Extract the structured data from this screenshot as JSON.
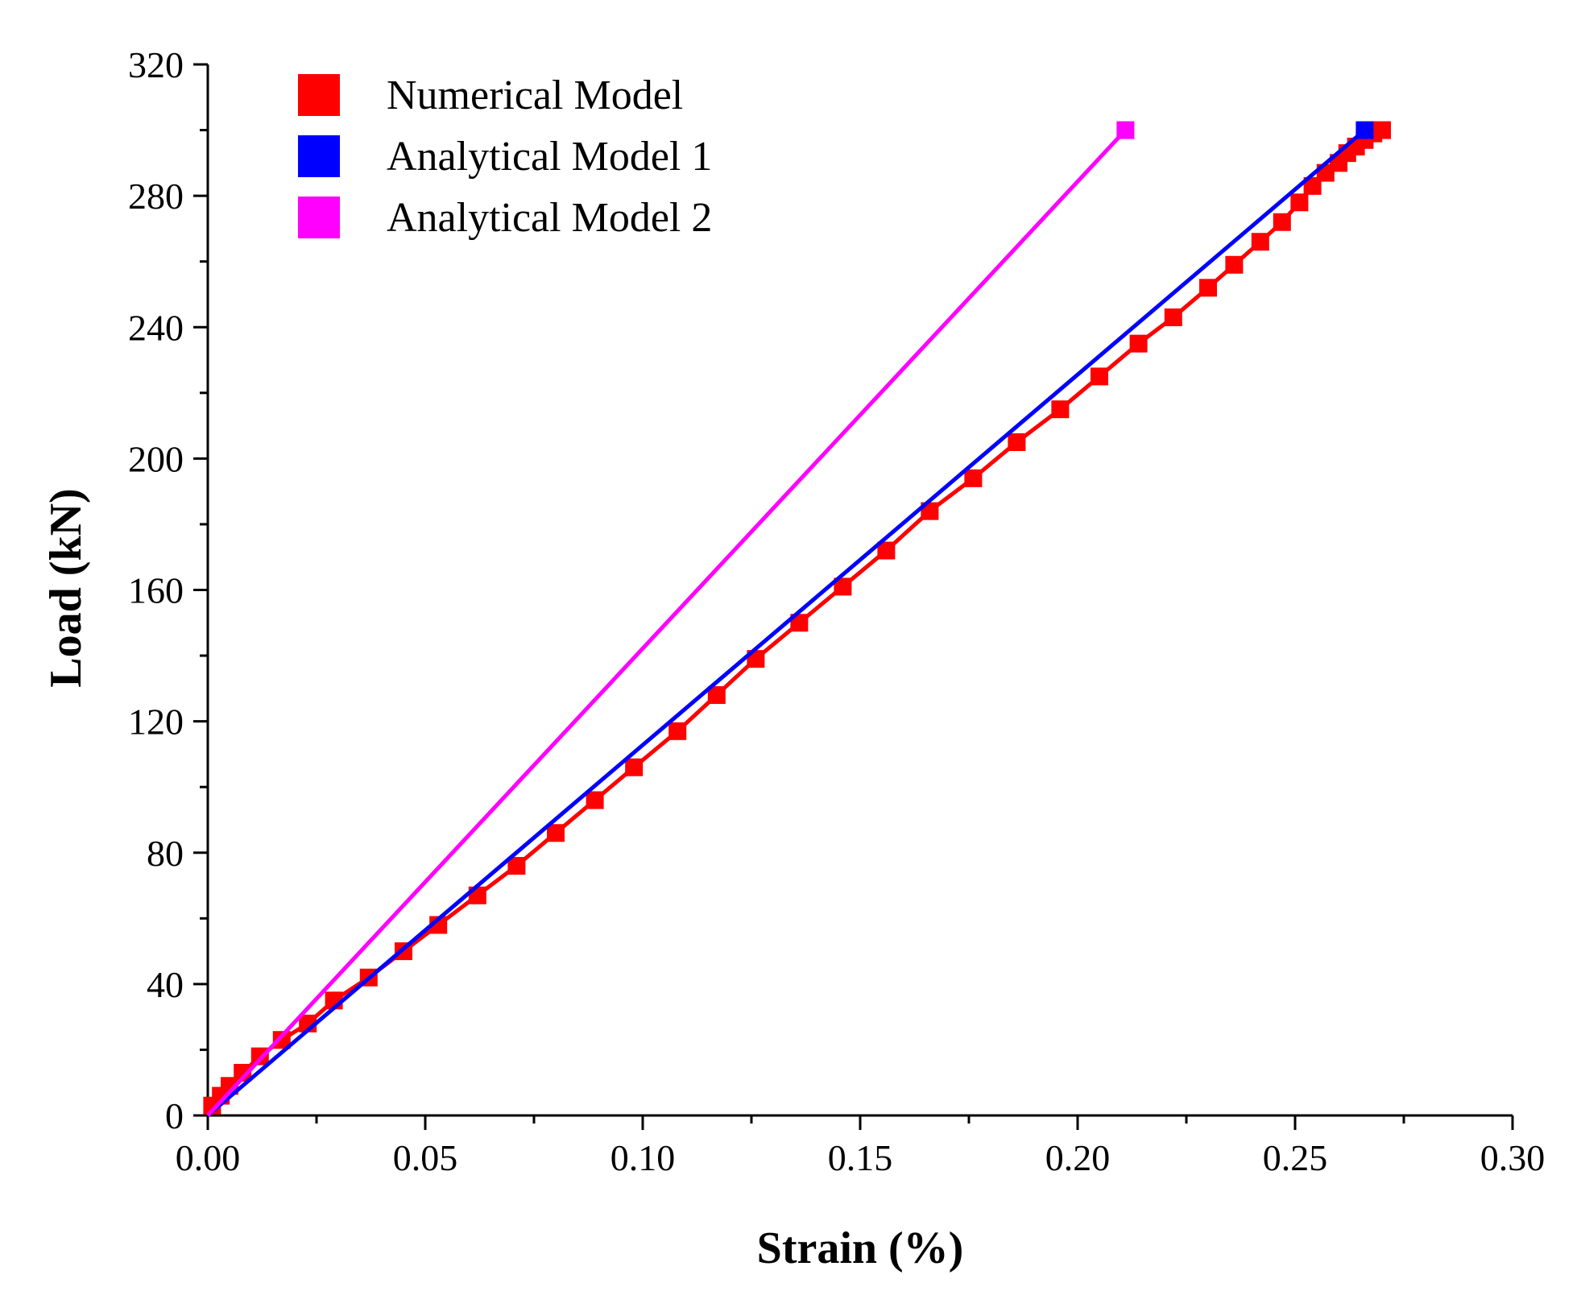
{
  "chart_data": {
    "type": "line",
    "title": "",
    "xlabel": "Strain (%)",
    "ylabel": "Load (kN)",
    "xlim": [
      0.0,
      0.3
    ],
    "ylim": [
      0,
      320
    ],
    "xticks": [
      0.0,
      0.05,
      0.1,
      0.15,
      0.2,
      0.25,
      0.3
    ],
    "xtick_labels": [
      "0.00",
      "0.05",
      "0.10",
      "0.15",
      "0.20",
      "0.25",
      "0.30"
    ],
    "yticks": [
      0,
      40,
      80,
      120,
      160,
      200,
      240,
      280,
      320
    ],
    "ytick_labels": [
      "0",
      "40",
      "80",
      "120",
      "160",
      "200",
      "240",
      "280",
      "320"
    ],
    "grid": false,
    "legend_position": "top-left",
    "series": [
      {
        "name": "Numerical Model",
        "color": "#ff0000",
        "marker": "square",
        "x": [
          0.001,
          0.003,
          0.005,
          0.008,
          0.012,
          0.017,
          0.023,
          0.029,
          0.037,
          0.045,
          0.053,
          0.062,
          0.071,
          0.08,
          0.089,
          0.098,
          0.108,
          0.117,
          0.126,
          0.136,
          0.146,
          0.156,
          0.166,
          0.176,
          0.186,
          0.196,
          0.205,
          0.214,
          0.222,
          0.23,
          0.236,
          0.242,
          0.247,
          0.251,
          0.254,
          0.257,
          0.26,
          0.262,
          0.264,
          0.266,
          0.268,
          0.27
        ],
        "y": [
          3,
          6,
          9,
          13,
          18,
          23,
          28,
          35,
          42,
          50,
          58,
          67,
          76,
          86,
          96,
          106,
          117,
          128,
          139,
          150,
          161,
          172,
          184,
          194,
          205,
          215,
          225,
          235,
          243,
          252,
          259,
          266,
          272,
          278,
          283,
          287,
          290,
          293,
          295,
          297,
          299,
          300
        ]
      },
      {
        "name": "Analytical Model 1",
        "color": "#0000ff",
        "marker": "square",
        "x": [
          0.0,
          0.266
        ],
        "y": [
          0,
          300
        ]
      },
      {
        "name": "Analytical Model 2",
        "color": "#ff00ff",
        "marker": "square",
        "x": [
          0.0,
          0.211
        ],
        "y": [
          0,
          300
        ]
      }
    ]
  }
}
